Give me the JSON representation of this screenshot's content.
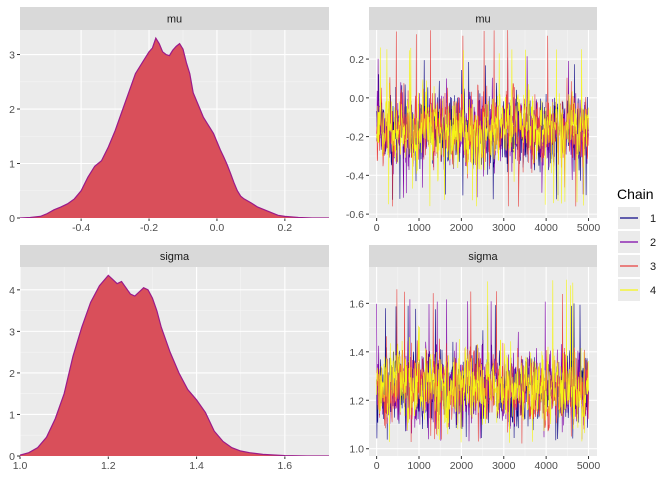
{
  "legend": {
    "title": "Chain",
    "items": [
      {
        "label": "1",
        "color": "#0d0887"
      },
      {
        "label": "2",
        "color": "#7e03a8"
      },
      {
        "label": "3",
        "color": "#e8413f"
      },
      {
        "label": "4",
        "color": "#f5f516"
      }
    ]
  },
  "chart_data": [
    {
      "type": "area",
      "facet": "mu",
      "title": "mu",
      "fill": "#d94f5a",
      "stroke": "#9b1a8a",
      "xlim": [
        -0.58,
        0.33
      ],
      "ylim": [
        0,
        3.45
      ],
      "x_ticks": [
        -0.4,
        -0.2,
        0.0,
        0.2
      ],
      "x_tick_labels": [
        "-0.4",
        "-0.2",
        "0.0",
        "0.2"
      ],
      "y_ticks": [
        0,
        1,
        2,
        3
      ],
      "y_tick_labels": [
        "0",
        "1",
        "2",
        "3"
      ],
      "x": [
        -0.58,
        -0.55,
        -0.52,
        -0.5,
        -0.48,
        -0.46,
        -0.44,
        -0.42,
        -0.4,
        -0.38,
        -0.36,
        -0.34,
        -0.32,
        -0.3,
        -0.28,
        -0.26,
        -0.24,
        -0.22,
        -0.2,
        -0.19,
        -0.18,
        -0.17,
        -0.16,
        -0.15,
        -0.14,
        -0.13,
        -0.12,
        -0.11,
        -0.1,
        -0.09,
        -0.08,
        -0.07,
        -0.06,
        -0.05,
        -0.04,
        -0.03,
        -0.02,
        -0.01,
        0.0,
        0.01,
        0.02,
        0.03,
        0.04,
        0.05,
        0.06,
        0.07,
        0.08,
        0.1,
        0.12,
        0.14,
        0.16,
        0.18,
        0.2,
        0.24,
        0.28,
        0.33
      ],
      "y": [
        0.0,
        0.01,
        0.03,
        0.08,
        0.15,
        0.2,
        0.26,
        0.35,
        0.5,
        0.75,
        0.95,
        1.05,
        1.3,
        1.6,
        1.95,
        2.3,
        2.65,
        2.85,
        3.05,
        3.12,
        3.3,
        3.2,
        3.05,
        3.0,
        2.98,
        3.08,
        3.15,
        3.2,
        3.1,
        2.85,
        2.65,
        2.3,
        2.15,
        2.0,
        1.85,
        1.75,
        1.65,
        1.55,
        1.4,
        1.25,
        1.12,
        0.98,
        0.82,
        0.65,
        0.5,
        0.4,
        0.35,
        0.28,
        0.2,
        0.15,
        0.1,
        0.05,
        0.03,
        0.01,
        0.0,
        0.0
      ]
    },
    {
      "type": "line",
      "facet": "mu",
      "title": "mu",
      "xlim": [
        -180,
        5200
      ],
      "ylim": [
        -0.62,
        0.35
      ],
      "x_ticks": [
        0,
        1000,
        2000,
        3000,
        4000,
        5000
      ],
      "x_tick_labels": [
        "0",
        "1000",
        "2000",
        "3000",
        "4000",
        "5000"
      ],
      "y_ticks": [
        0.2,
        0.0,
        -0.2,
        -0.4,
        -0.6
      ],
      "y_tick_labels": [
        "0.2",
        "0.0",
        "-0.2",
        "-0.4",
        "-0.6"
      ],
      "x": [
        0,
        5000
      ],
      "series": [
        {
          "name": "1",
          "color": "#0d0887",
          "center": -0.17,
          "spread": 0.11,
          "min": -0.53,
          "max": 0.2
        },
        {
          "name": "2",
          "color": "#7e03a8",
          "center": -0.17,
          "spread": 0.11,
          "min": -0.52,
          "max": 0.22
        },
        {
          "name": "3",
          "color": "#e8413f",
          "center": -0.17,
          "spread": 0.11,
          "min": -0.58,
          "max": 0.35
        },
        {
          "name": "4",
          "color": "#f5f516",
          "center": -0.17,
          "spread": 0.11,
          "min": -0.56,
          "max": 0.26
        }
      ]
    },
    {
      "type": "area",
      "facet": "sigma",
      "title": "sigma",
      "fill": "#d94f5a",
      "stroke": "#9b1a8a",
      "xlim": [
        1.0,
        1.7
      ],
      "ylim": [
        0,
        4.55
      ],
      "x_ticks": [
        1.0,
        1.2,
        1.4,
        1.6
      ],
      "x_tick_labels": [
        "1.0",
        "1.2",
        "1.4",
        "1.6"
      ],
      "y_ticks": [
        0,
        1,
        2,
        3,
        4
      ],
      "y_tick_labels": [
        "0",
        "1",
        "2",
        "3",
        "4"
      ],
      "x": [
        1.0,
        1.02,
        1.04,
        1.06,
        1.08,
        1.1,
        1.12,
        1.14,
        1.16,
        1.18,
        1.2,
        1.21,
        1.22,
        1.23,
        1.24,
        1.25,
        1.26,
        1.27,
        1.28,
        1.29,
        1.3,
        1.31,
        1.32,
        1.34,
        1.36,
        1.38,
        1.4,
        1.42,
        1.44,
        1.46,
        1.48,
        1.5,
        1.52,
        1.55,
        1.6,
        1.65,
        1.7
      ],
      "y": [
        0.02,
        0.08,
        0.2,
        0.45,
        0.9,
        1.5,
        2.4,
        3.1,
        3.7,
        4.1,
        4.35,
        4.25,
        4.15,
        4.2,
        4.05,
        3.9,
        3.85,
        3.95,
        4.05,
        4.0,
        3.8,
        3.5,
        3.1,
        2.5,
        2.0,
        1.6,
        1.35,
        1.05,
        0.6,
        0.35,
        0.2,
        0.12,
        0.08,
        0.04,
        0.01,
        0.0,
        0.0
      ]
    },
    {
      "type": "line",
      "facet": "sigma",
      "title": "sigma",
      "xlim": [
        -180,
        5200
      ],
      "ylim": [
        0.97,
        1.75
      ],
      "x_ticks": [
        0,
        1000,
        2000,
        3000,
        4000,
        5000
      ],
      "x_tick_labels": [
        "0",
        "1000",
        "2000",
        "3000",
        "4000",
        "5000"
      ],
      "y_ticks": [
        1.6,
        1.4,
        1.2,
        1.0
      ],
      "y_tick_labels": [
        "1.6",
        "1.4",
        "1.2",
        "1.0"
      ],
      "x": [
        0,
        5000
      ],
      "series": [
        {
          "name": "1",
          "color": "#0d0887",
          "center": 1.25,
          "spread": 0.09,
          "min": 1.03,
          "max": 1.6
        },
        {
          "name": "2",
          "color": "#7e03a8",
          "center": 1.25,
          "spread": 0.09,
          "min": 1.02,
          "max": 1.62
        },
        {
          "name": "3",
          "color": "#e8413f",
          "center": 1.25,
          "spread": 0.09,
          "min": 1.02,
          "max": 1.66
        },
        {
          "name": "4",
          "color": "#f5f516",
          "center": 1.26,
          "spread": 0.09,
          "min": 1.02,
          "max": 1.7
        }
      ]
    }
  ]
}
